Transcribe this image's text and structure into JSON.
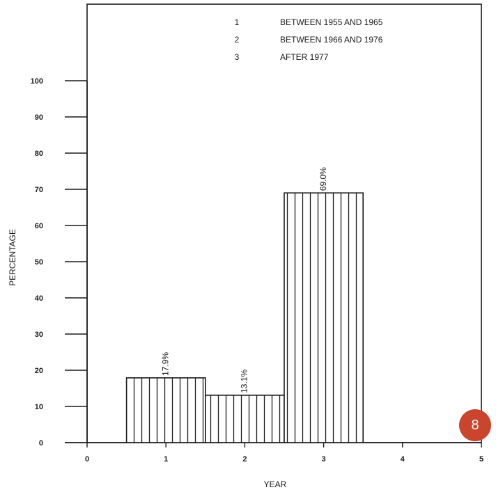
{
  "chart_data": {
    "type": "bar",
    "categories": [
      "1",
      "2",
      "3"
    ],
    "values": [
      17.9,
      13.1,
      69.0
    ],
    "data_labels": [
      "17.9%",
      "13.1%",
      "69.0%"
    ],
    "xlabel": "YEAR",
    "ylabel": "PERCENTAGE",
    "xlim": [
      0,
      5
    ],
    "ylim": [
      0,
      100
    ],
    "x_ticks": [
      "0",
      "1",
      "2",
      "3",
      "4",
      "5"
    ],
    "y_ticks": [
      "0",
      "10",
      "20",
      "30",
      "40",
      "50",
      "60",
      "70",
      "80",
      "90",
      "100"
    ],
    "legend": [
      {
        "key": "1",
        "text": "BETWEEN 1955 AND 1965"
      },
      {
        "key": "2",
        "text": "BETWEEN 1966 AND 1976"
      },
      {
        "key": "3",
        "text": "AFTER 1977"
      }
    ],
    "legend_position": "top-right",
    "bar_fill": "vertical-hatch",
    "grid": false
  },
  "page_number": "8",
  "colors": {
    "badge": "#c9452d",
    "ink": "#1a1a1a"
  }
}
